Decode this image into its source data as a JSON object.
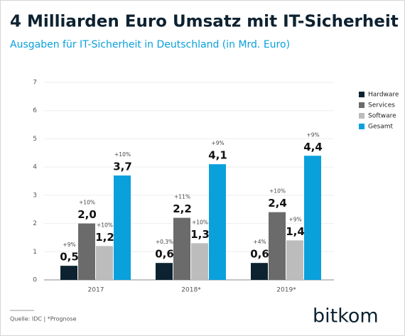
{
  "chart_data": {
    "type": "bar",
    "title": "4 Milliarden Euro Umsatz mit IT-Sicherheit",
    "subtitle": "Ausgaben für IT-Sicherheit in Deutschland (in Mrd. Euro)",
    "categories": [
      "2017",
      "2018*",
      "2019*"
    ],
    "series": [
      {
        "name": "Hardware",
        "color": "#0d2230",
        "values": [
          0.5,
          0.6,
          0.6
        ],
        "value_labels": [
          "0,5",
          "0,6",
          "0,6"
        ],
        "growth_labels": [
          "+9%",
          "+0,3%",
          "+4%"
        ]
      },
      {
        "name": "Services",
        "color": "#6b6b6b",
        "values": [
          2.0,
          2.2,
          2.4
        ],
        "value_labels": [
          "2,0",
          "2,2",
          "2,4"
        ],
        "growth_labels": [
          "+10%",
          "+11%",
          "+10%"
        ]
      },
      {
        "name": "Software",
        "color": "#bcbcbc",
        "values": [
          1.2,
          1.3,
          1.4
        ],
        "value_labels": [
          "1,2",
          "1,3",
          "1,4"
        ],
        "growth_labels": [
          "+10%",
          "+10%",
          "+9%"
        ]
      },
      {
        "name": "Gesamt",
        "color": "#0aa0dc",
        "values": [
          3.7,
          4.1,
          4.4
        ],
        "value_labels": [
          "3,7",
          "4,1",
          "4,4"
        ],
        "growth_labels": [
          "+10%",
          "+9%",
          "+9%"
        ]
      }
    ],
    "ylim": [
      0,
      7
    ],
    "yticks": [
      0,
      1,
      2,
      3,
      4,
      5,
      6,
      7
    ],
    "grid": true,
    "source": "Quelle: IDC | *Prognose",
    "logo": "bitkom"
  }
}
